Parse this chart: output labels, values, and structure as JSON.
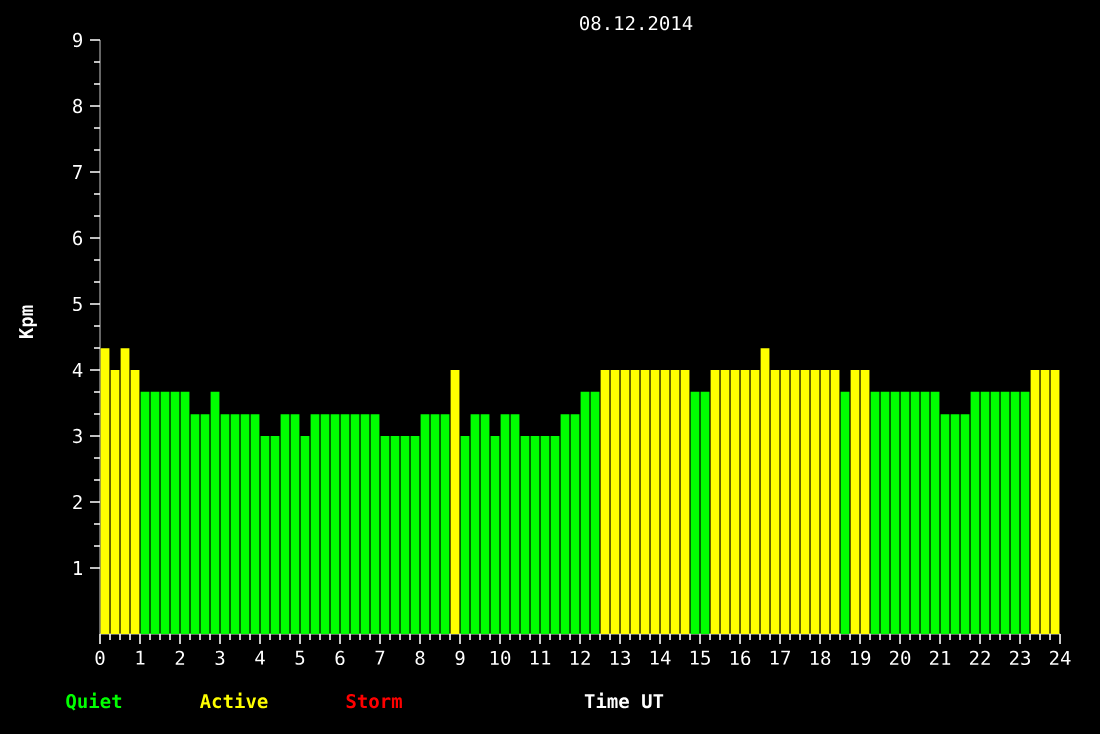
{
  "chart_data": {
    "type": "bar",
    "title": "08.12.2014",
    "xlabel": "Time UT",
    "ylabel": "Kpm",
    "x": [
      0.125,
      0.375,
      0.625,
      0.875,
      1.125,
      1.375,
      1.625,
      1.875,
      2.125,
      2.375,
      2.625,
      2.875,
      3.125,
      3.375,
      3.625,
      3.875,
      4.125,
      4.375,
      4.625,
      4.875,
      5.125,
      5.375,
      5.625,
      5.875,
      6.125,
      6.375,
      6.625,
      6.875,
      7.125,
      7.375,
      7.625,
      7.875,
      8.125,
      8.375,
      8.625,
      8.875,
      9.125,
      9.375,
      9.625,
      9.875,
      10.125,
      10.375,
      10.625,
      10.875,
      11.125,
      11.375,
      11.625,
      11.875,
      12.125,
      12.375,
      12.625,
      12.875,
      13.125,
      13.375,
      13.625,
      13.875,
      14.125,
      14.375,
      14.625,
      14.875,
      15.125,
      15.375,
      15.625,
      15.875,
      16.125,
      16.375,
      16.625,
      16.875,
      17.125,
      17.375,
      17.625,
      17.875,
      18.125,
      18.375,
      18.625,
      18.875,
      19.125,
      19.375,
      19.625,
      19.875,
      20.125,
      20.375,
      20.625,
      20.875,
      21.125,
      21.375,
      21.625,
      21.875,
      22.125,
      22.375,
      22.625,
      22.875,
      23.125,
      23.375,
      23.625,
      23.875
    ],
    "series": [
      {
        "name": "Quiet",
        "color": "#00ff00",
        "values": [
          null,
          null,
          null,
          null,
          3.67,
          3.67,
          3.67,
          3.67,
          3.67,
          3.33,
          3.33,
          3.67,
          3.33,
          3.33,
          3.33,
          3.33,
          3,
          3,
          3.33,
          3.33,
          3,
          3.33,
          3.33,
          3.33,
          3.33,
          3.33,
          3.33,
          3.33,
          3,
          3,
          3,
          3,
          3.33,
          3.33,
          3.33,
          null,
          3,
          3.33,
          3.33,
          3,
          3.33,
          3.33,
          3,
          3,
          3,
          3,
          3.33,
          3.33,
          3.67,
          3.67,
          null,
          null,
          null,
          null,
          null,
          null,
          null,
          null,
          null,
          3.67,
          3.67,
          null,
          null,
          null,
          null,
          null,
          null,
          null,
          null,
          null,
          null,
          null,
          null,
          null,
          3.67,
          null,
          null,
          3.67,
          3.67,
          3.67,
          3.67,
          3.67,
          3.67,
          3.67,
          3.33,
          3.33,
          3.33,
          3.67,
          3.67,
          3.67,
          3.67,
          3.67,
          3.67,
          null,
          null,
          null
        ]
      },
      {
        "name": "Active",
        "color": "#ffff00",
        "values": [
          4.33,
          4,
          4.33,
          4,
          null,
          null,
          null,
          null,
          null,
          null,
          null,
          null,
          null,
          null,
          null,
          null,
          null,
          null,
          null,
          null,
          null,
          null,
          null,
          null,
          null,
          null,
          null,
          null,
          null,
          null,
          null,
          null,
          null,
          null,
          null,
          4,
          null,
          null,
          null,
          null,
          null,
          null,
          null,
          null,
          null,
          null,
          null,
          null,
          null,
          null,
          4,
          4,
          4,
          4,
          4,
          4,
          4,
          4,
          4,
          null,
          null,
          4,
          4,
          4,
          4,
          4,
          4.33,
          4,
          4,
          4,
          4,
          4,
          4,
          4,
          null,
          4,
          4,
          null,
          null,
          null,
          null,
          null,
          null,
          null,
          null,
          null,
          null,
          null,
          null,
          null,
          null,
          null,
          null,
          4,
          4,
          4
        ]
      },
      {
        "name": "Storm",
        "color": "#ff0000",
        "values": [
          null,
          null,
          null,
          null,
          null,
          null,
          null,
          null,
          null,
          null,
          null,
          null,
          null,
          null,
          null,
          null,
          null,
          null,
          null,
          null,
          null,
          null,
          null,
          null,
          null,
          null,
          null,
          null,
          null,
          null,
          null,
          null,
          null,
          null,
          null,
          null,
          null,
          null,
          null,
          null,
          null,
          null,
          null,
          null,
          null,
          null,
          null,
          null,
          null,
          null,
          null,
          null,
          null,
          null,
          null,
          null,
          null,
          null,
          null,
          null,
          null,
          null,
          null,
          null,
          null,
          null,
          null,
          null,
          null,
          null,
          null,
          null,
          null,
          null,
          null,
          null,
          null,
          null,
          null,
          null,
          null,
          null,
          null,
          null,
          null,
          null,
          null,
          null,
          null,
          null,
          null,
          null,
          null,
          null,
          null,
          null
        ]
      }
    ],
    "xlim": [
      0,
      24
    ],
    "xticks": [
      0,
      1,
      2,
      3,
      4,
      5,
      6,
      7,
      8,
      9,
      10,
      11,
      12,
      13,
      14,
      15,
      16,
      17,
      18,
      19,
      20,
      21,
      22,
      23,
      24
    ],
    "ylim": [
      0,
      9
    ],
    "yticks": [
      1,
      2,
      3,
      4,
      5,
      6,
      7,
      8,
      9
    ],
    "legend": "bottom left"
  }
}
